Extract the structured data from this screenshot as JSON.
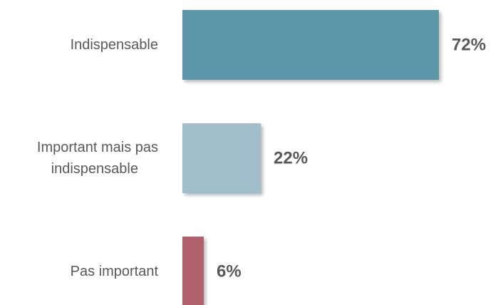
{
  "chart_data": {
    "type": "bar",
    "orientation": "horizontal",
    "categories": [
      [
        "Indispensable"
      ],
      [
        "Important mais pas",
        "indispensable"
      ],
      [
        "Pas important"
      ]
    ],
    "values": [
      72,
      22,
      6
    ],
    "value_labels": [
      "72%",
      "22%",
      "6%"
    ],
    "colors": [
      "#5b96aa",
      "#a1bfca",
      "#b0616a"
    ],
    "xlim": [
      0,
      72
    ],
    "title": "",
    "xlabel": "",
    "ylabel": "",
    "grid": false,
    "legend": "none"
  }
}
